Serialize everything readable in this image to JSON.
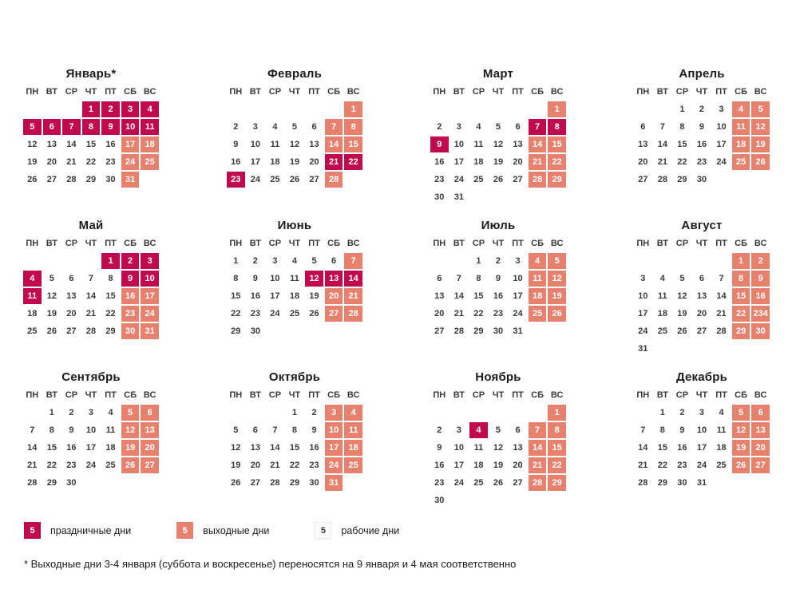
{
  "colors": {
    "holiday": "#c00a4d",
    "weekend": "#e8806e",
    "workday_bg": "#ffffff",
    "text": "#3a3a3a"
  },
  "weekdays": [
    "ПН",
    "ВТ",
    "СР",
    "ЧТ",
    "ПТ",
    "СБ",
    "ВС"
  ],
  "legend": {
    "items": [
      {
        "type": "holiday",
        "sample": "5",
        "label": "праздничные дни"
      },
      {
        "type": "weekend",
        "sample": "5",
        "label": "выходные дни"
      },
      {
        "type": "workday",
        "sample": "5",
        "label": "рабочие дни"
      }
    ]
  },
  "footnote": "* Выходные дни 3-4 января (суббота и воскресенье) переносятся на 9 января и 4 мая соответственно",
  "months": [
    {
      "id": "january",
      "name": "Январь*",
      "weeks": [
        [
          "",
          "",
          "",
          "1h",
          "2h",
          "3h",
          "4h"
        ],
        [
          "5h",
          "6h",
          "7h",
          "8h",
          "9h",
          "10h",
          "11h"
        ],
        [
          "12",
          "13",
          "14",
          "15",
          "16",
          "17w",
          "18w"
        ],
        [
          "19",
          "20",
          "21",
          "22",
          "23",
          "24w",
          "25w"
        ],
        [
          "26",
          "27",
          "28",
          "29",
          "30",
          "31w",
          ""
        ]
      ]
    },
    {
      "id": "february",
      "name": "Февраль",
      "weeks": [
        [
          "",
          "",
          "",
          "",
          "",
          "",
          "1w"
        ],
        [
          "2",
          "3",
          "4",
          "5",
          "6",
          "7w",
          "8w"
        ],
        [
          "9",
          "10",
          "11",
          "12",
          "13",
          "14w",
          "15w"
        ],
        [
          "16",
          "17",
          "18",
          "19",
          "20",
          "21h",
          "22h"
        ],
        [
          "23h",
          "24",
          "25",
          "26",
          "27",
          "28w",
          ""
        ]
      ]
    },
    {
      "id": "march",
      "name": "Март",
      "weeks": [
        [
          "",
          "",
          "",
          "",
          "",
          "",
          "1w"
        ],
        [
          "2",
          "3",
          "4",
          "5",
          "6",
          "7h",
          "8h"
        ],
        [
          "9h",
          "10",
          "11",
          "12",
          "13",
          "14w",
          "15w"
        ],
        [
          "16",
          "17",
          "18",
          "19",
          "20",
          "21w",
          "22w"
        ],
        [
          "23",
          "24",
          "25",
          "26",
          "27",
          "28w",
          "29w"
        ],
        [
          "30",
          "31",
          "",
          "",
          "",
          "",
          ""
        ]
      ]
    },
    {
      "id": "april",
      "name": "Апрель",
      "weeks": [
        [
          "",
          "",
          "1",
          "2",
          "3",
          "4w",
          "5w"
        ],
        [
          "6",
          "7",
          "8",
          "9",
          "10",
          "11w",
          "12w"
        ],
        [
          "13",
          "14",
          "15",
          "16",
          "17",
          "18w",
          "19w"
        ],
        [
          "20",
          "21",
          "22",
          "23",
          "24",
          "25w",
          "26w"
        ],
        [
          "27",
          "28",
          "29",
          "30",
          "",
          "",
          ""
        ]
      ]
    },
    {
      "id": "may",
      "name": "Май",
      "weeks": [
        [
          "",
          "",
          "",
          "",
          "1h",
          "2h",
          "3h"
        ],
        [
          "4h",
          "5",
          "6",
          "7",
          "8",
          "9h",
          "10h"
        ],
        [
          "11h",
          "12",
          "13",
          "14",
          "15",
          "16w",
          "17w"
        ],
        [
          "18",
          "19",
          "20",
          "21",
          "22",
          "23w",
          "24w"
        ],
        [
          "25",
          "26",
          "27",
          "28",
          "29",
          "30w",
          "31w"
        ]
      ]
    },
    {
      "id": "june",
      "name": "Июнь",
      "weeks": [
        [
          "1",
          "2",
          "3",
          "4",
          "5",
          "6",
          "7w"
        ],
        [
          "8",
          "9",
          "10",
          "11",
          "12h",
          "13h",
          "14h"
        ],
        [
          "15",
          "16",
          "17",
          "18",
          "19",
          "20w",
          "21w"
        ],
        [
          "22",
          "23",
          "24",
          "25",
          "26",
          "27w",
          "28w"
        ],
        [
          "29",
          "30",
          "",
          "",
          "",
          "",
          ""
        ]
      ]
    },
    {
      "id": "july",
      "name": "Июль",
      "weeks": [
        [
          "",
          "",
          "1",
          "2",
          "3",
          "4w",
          "5w"
        ],
        [
          "6",
          "7",
          "8",
          "9",
          "10",
          "11w",
          "12w"
        ],
        [
          "13",
          "14",
          "15",
          "16",
          "17",
          "18w",
          "19w"
        ],
        [
          "20",
          "21",
          "22",
          "23",
          "24",
          "25w",
          "26w"
        ],
        [
          "27",
          "28",
          "29",
          "30",
          "31",
          "",
          ""
        ]
      ]
    },
    {
      "id": "august",
      "name": "Август",
      "weeks": [
        [
          "",
          "",
          "",
          "",
          "",
          "1w",
          "2w"
        ],
        [
          "3",
          "4",
          "5",
          "6",
          "7",
          "8w",
          "9w"
        ],
        [
          "10",
          "11",
          "12",
          "13",
          "14",
          "15w",
          "16w"
        ],
        [
          "17",
          "18",
          "19",
          "20",
          "21",
          "22w",
          "234w"
        ],
        [
          "24",
          "25",
          "26",
          "27",
          "28",
          "29w",
          "30w"
        ],
        [
          "31",
          "",
          "",
          "",
          "",
          "",
          ""
        ]
      ]
    },
    {
      "id": "september",
      "name": "Сентябрь",
      "weeks": [
        [
          "",
          "1",
          "2",
          "3",
          "4",
          "5w",
          "6w"
        ],
        [
          "7",
          "8",
          "9",
          "10",
          "11",
          "12w",
          "13w"
        ],
        [
          "14",
          "15",
          "16",
          "17",
          "18",
          "19w",
          "20w"
        ],
        [
          "21",
          "22",
          "23",
          "24",
          "25",
          "26w",
          "27w"
        ],
        [
          "28",
          "29",
          "30",
          "",
          "",
          "",
          ""
        ]
      ]
    },
    {
      "id": "october",
      "name": "Октябрь",
      "weeks": [
        [
          "",
          "",
          "",
          "1",
          "2",
          "3w",
          "4w"
        ],
        [
          "5",
          "6",
          "7",
          "8",
          "9",
          "10w",
          "11w"
        ],
        [
          "12",
          "13",
          "14",
          "15",
          "16",
          "17w",
          "18w"
        ],
        [
          "19",
          "20",
          "21",
          "22",
          "23",
          "24w",
          "25w"
        ],
        [
          "26",
          "27",
          "28",
          "29",
          "30",
          "31w",
          ""
        ]
      ]
    },
    {
      "id": "november",
      "name": "Ноябрь",
      "weeks": [
        [
          "",
          "",
          "",
          "",
          "",
          "",
          "1w"
        ],
        [
          "2",
          "3",
          "4h",
          "5",
          "6",
          "7w",
          "8w"
        ],
        [
          "9",
          "10",
          "11",
          "12",
          "13",
          "14w",
          "15w"
        ],
        [
          "16",
          "17",
          "18",
          "19",
          "20",
          "21w",
          "22w"
        ],
        [
          "23",
          "24",
          "25",
          "26",
          "27",
          "28w",
          "29w"
        ],
        [
          "30",
          "",
          "",
          "",
          "",
          "",
          ""
        ]
      ]
    },
    {
      "id": "december",
      "name": "Декабрь",
      "weeks": [
        [
          "",
          "1",
          "2",
          "3",
          "4",
          "5w",
          "6w"
        ],
        [
          "7",
          "8",
          "9",
          "10",
          "11",
          "12w",
          "13w"
        ],
        [
          "14",
          "15",
          "16",
          "17",
          "18",
          "19w",
          "20w"
        ],
        [
          "21",
          "22",
          "23",
          "24",
          "25",
          "26w",
          "27w"
        ],
        [
          "28",
          "29",
          "30",
          "31",
          "",
          "",
          ""
        ]
      ]
    }
  ]
}
